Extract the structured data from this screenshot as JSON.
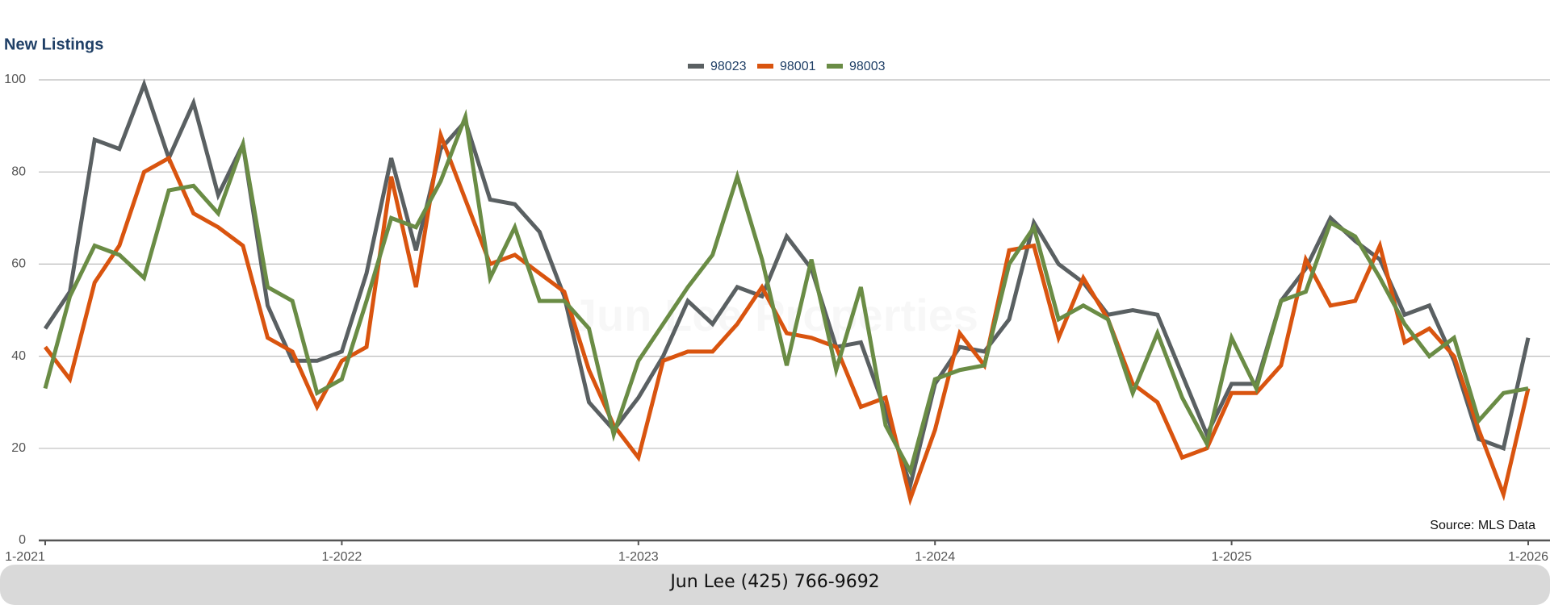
{
  "chart_data": {
    "type": "line",
    "title": "New Listings",
    "watermark": "Jun Lee Properties",
    "source": "Source: MLS Data",
    "footer": "Jun Lee (425) 766-9692",
    "categories": [
      "1-2021",
      null,
      null,
      null,
      null,
      null,
      null,
      null,
      null,
      null,
      null,
      null,
      "1-2022",
      null,
      null,
      null,
      null,
      null,
      null,
      null,
      null,
      null,
      null,
      null,
      "1-2023",
      null,
      null,
      null,
      null,
      null,
      null,
      null,
      null,
      null,
      null,
      null,
      "1-2024",
      null,
      null,
      null,
      null,
      null,
      null,
      null,
      null,
      null,
      null,
      null,
      "1-2025",
      null,
      null,
      null,
      null,
      null,
      null,
      null,
      null,
      null,
      null,
      null,
      "1-2026"
    ],
    "series": [
      {
        "name": "98023",
        "color": "#5a6062",
        "values": [
          46,
          54,
          87,
          85,
          99,
          83,
          95,
          75,
          86,
          51,
          39,
          39,
          41,
          58,
          83,
          63,
          85,
          91,
          74,
          73,
          67,
          53,
          30,
          24,
          31,
          40,
          52,
          47,
          55,
          53,
          66,
          59,
          42,
          43,
          28,
          12,
          34,
          42,
          41,
          48,
          69,
          60,
          56,
          49,
          50,
          49,
          36,
          23,
          34,
          34,
          52,
          59,
          70,
          65,
          61,
          49,
          51,
          39,
          22,
          20,
          44
        ]
      },
      {
        "name": "98001",
        "color": "#d9540f",
        "values": [
          42,
          35,
          56,
          64,
          80,
          83,
          71,
          68,
          64,
          44,
          41,
          29,
          39,
          42,
          79,
          55,
          88,
          74,
          60,
          62,
          58,
          54,
          37,
          25,
          18,
          39,
          41,
          41,
          47,
          55,
          45,
          44,
          42,
          29,
          31,
          9,
          24,
          45,
          38,
          63,
          64,
          44,
          57,
          48,
          34,
          30,
          18,
          20,
          32,
          32,
          38,
          61,
          51,
          52,
          64,
          43,
          46,
          40,
          24,
          10,
          33
        ]
      },
      {
        "name": "98003",
        "color": "#6a8c45",
        "values": [
          33,
          53,
          64,
          62,
          57,
          76,
          77,
          71,
          86,
          55,
          52,
          32,
          35,
          52,
          70,
          68,
          78,
          92,
          57,
          68,
          52,
          52,
          46,
          23,
          39,
          47,
          55,
          62,
          79,
          61,
          38,
          61,
          37,
          55,
          25,
          15,
          35,
          37,
          38,
          60,
          68,
          48,
          51,
          48,
          32,
          45,
          31,
          21,
          44,
          33,
          52,
          54,
          69,
          66,
          57,
          47,
          40,
          44,
          26,
          32,
          33
        ]
      }
    ],
    "ylim": [
      0,
      100
    ],
    "yticks": [
      0,
      20,
      40,
      60,
      80,
      100
    ],
    "grid": true,
    "legend": "top"
  }
}
